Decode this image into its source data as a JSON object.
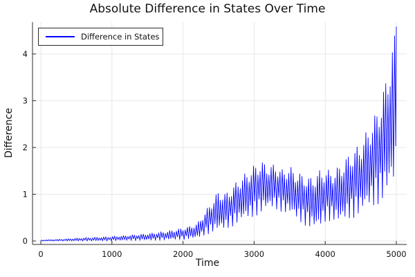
{
  "chart_data": {
    "type": "line",
    "title": "Absolute Difference in States Over Time",
    "xlabel": "Time",
    "ylabel": "Difference",
    "grid": true,
    "legend_position": "top-left",
    "xlim": [
      -117,
      5146
    ],
    "ylim": [
      -0.074,
      4.68
    ],
    "xticks": [
      0,
      1000,
      2000,
      3000,
      4000,
      5000
    ],
    "yticks": [
      0,
      1,
      2,
      3,
      4
    ],
    "colors": {
      "line": "#0000ff",
      "grid": "#e7e7e7",
      "axis": "#2b2b2b",
      "text": "#111111"
    },
    "series": [
      {
        "name": "Difference in States",
        "color": "#0000ff",
        "shape": "rapid oscillation of |x1-x2| between lower and upper envelopes, amplitude grows over time",
        "osc_period": 31,
        "envelope": {
          "t": [
            0,
            300,
            600,
            900,
            1200,
            1500,
            1800,
            2000,
            2100,
            2200,
            2300,
            2400,
            2500,
            2600,
            2700,
            2800,
            2900,
            3000,
            3100,
            3200,
            3300,
            3400,
            3500,
            3600,
            3700,
            3800,
            3900,
            4000,
            4100,
            4200,
            4300,
            4400,
            4500,
            4600,
            4700,
            4800,
            4870,
            4930,
            4970,
            5000
          ],
          "lower": [
            0.0,
            0.0,
            0.0,
            0.0,
            0.01,
            0.01,
            0.02,
            0.03,
            0.04,
            0.05,
            0.12,
            0.18,
            0.2,
            0.25,
            0.32,
            0.4,
            0.46,
            0.52,
            0.6,
            0.68,
            0.68,
            0.62,
            0.55,
            0.45,
            0.35,
            0.27,
            0.22,
            0.4,
            0.45,
            0.35,
            0.45,
            0.5,
            0.58,
            0.68,
            0.75,
            0.85,
            0.95,
            1.05,
            1.15,
            1.2
          ],
          "upper": [
            0.02,
            0.04,
            0.07,
            0.09,
            0.12,
            0.16,
            0.22,
            0.28,
            0.32,
            0.38,
            0.6,
            0.85,
            1.08,
            1.02,
            1.18,
            1.35,
            1.48,
            1.62,
            1.72,
            1.62,
            1.65,
            1.52,
            1.6,
            1.48,
            1.42,
            1.36,
            1.5,
            1.55,
            1.48,
            1.62,
            1.8,
            1.95,
            2.1,
            2.4,
            2.7,
            3.1,
            3.6,
            4.1,
            4.4,
            4.58
          ]
        }
      }
    ]
  }
}
